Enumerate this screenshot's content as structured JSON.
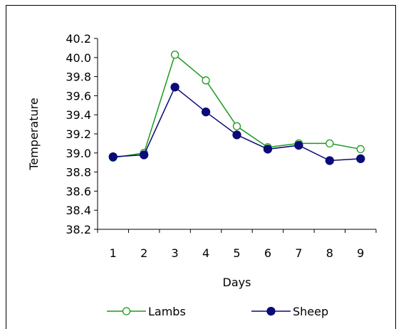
{
  "chart_data": {
    "type": "line",
    "categories": [
      "1",
      "2",
      "3",
      "4",
      "5",
      "6",
      "7",
      "8",
      "9"
    ],
    "xlabel": "Days",
    "ylabel": "Temperature",
    "ylim": [
      38.2,
      40.2
    ],
    "ytick_step": 0.2,
    "yticks": [
      "38.2",
      "38.4",
      "38.6",
      "38.8",
      "39.0",
      "39.2",
      "39.4",
      "39.6",
      "39.8",
      "40.0",
      "40.2"
    ],
    "legend_position": "bottom",
    "grid": false,
    "series": [
      {
        "name": "Lambs",
        "values": [
          38.95,
          39.0,
          40.03,
          39.76,
          39.28,
          39.06,
          39.1,
          39.1,
          39.04
        ],
        "color": "#1a9b1a",
        "marker": "open-circle"
      },
      {
        "name": "Sheep",
        "values": [
          38.96,
          38.98,
          39.69,
          39.43,
          39.19,
          39.04,
          39.08,
          38.92,
          38.94
        ],
        "color": "#0a0a78",
        "marker": "filled-circle"
      }
    ]
  }
}
